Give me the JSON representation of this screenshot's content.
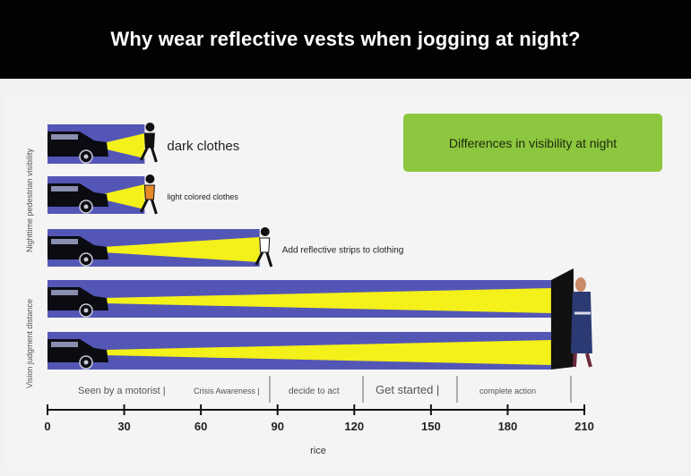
{
  "header": {
    "title": "Why wear reflective vests when jogging at night?"
  },
  "badge": {
    "text": "Differences in visibility at night"
  },
  "side_labels": {
    "top": "Nighttime pedestrian visibility",
    "bottom": "Vision judgment distance"
  },
  "rows": [
    {
      "label": "dark clothes",
      "reach": 38
    },
    {
      "label": "light colored clothes",
      "reach": 38
    },
    {
      "label": "Add reflective strips to clothing",
      "reach": 83
    },
    {
      "label": "",
      "reach": 197
    },
    {
      "label": "",
      "reach": 197
    }
  ],
  "stages": [
    {
      "label": "Seen by a motorist |",
      "start": 0
    },
    {
      "label": "Crisis Awareness |",
      "start": 50
    },
    {
      "label": "decide to act",
      "start": 90
    },
    {
      "label": "Get started |",
      "start": 120
    },
    {
      "label": "complete action",
      "start": 160
    }
  ],
  "axis": {
    "ticks": [
      0,
      30,
      60,
      90,
      120,
      150,
      180,
      210
    ],
    "min": 0,
    "max": 210,
    "label": "rice"
  },
  "colors": {
    "band": "#5456b6",
    "beam": "#f3f01a",
    "car": "#0b0b12",
    "badge": "#8dc63f"
  }
}
